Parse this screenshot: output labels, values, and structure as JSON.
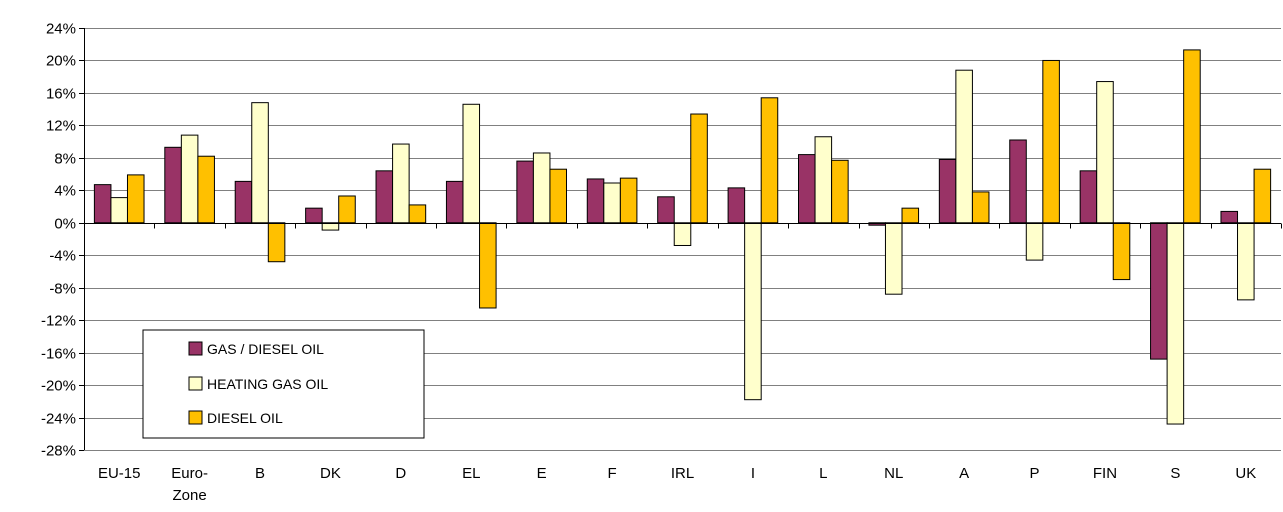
{
  "chart_data": {
    "type": "bar",
    "title": "",
    "xlabel": "",
    "ylabel": "",
    "ylim": [
      -28,
      24
    ],
    "ytick_step": 4,
    "ytick_labels": [
      "24%",
      "20%",
      "16%",
      "12%",
      "8%",
      "4%",
      "0%",
      "-4%",
      "-8%",
      "-12%",
      "-16%",
      "-20%",
      "-24%",
      "-28%"
    ],
    "categories": [
      "EU-15",
      "Euro-Zone",
      "B",
      "DK",
      "D",
      "EL",
      "E",
      "F",
      "IRL",
      "I",
      "L",
      "NL",
      "A",
      "P",
      "FIN",
      "S",
      "UK"
    ],
    "category_lines": [
      [
        "EU-15"
      ],
      [
        "Euro-",
        "Zone"
      ],
      [
        "B"
      ],
      [
        "DK"
      ],
      [
        "D"
      ],
      [
        "EL"
      ],
      [
        "E"
      ],
      [
        "F"
      ],
      [
        "IRL"
      ],
      [
        "I"
      ],
      [
        "L"
      ],
      [
        "NL"
      ],
      [
        "A"
      ],
      [
        "P"
      ],
      [
        "FIN"
      ],
      [
        "S"
      ],
      [
        "UK"
      ]
    ],
    "grid": true,
    "legend_position": "bottom-left",
    "series": [
      {
        "name": "GAS / DIESEL OIL",
        "color": "#993366",
        "values": [
          4.7,
          9.3,
          5.1,
          1.8,
          6.4,
          5.1,
          7.6,
          5.4,
          3.2,
          4.3,
          8.4,
          -0.3,
          7.8,
          10.2,
          6.4,
          -16.8,
          1.4
        ]
      },
      {
        "name": "HEATING GAS OIL",
        "color": "#FFFFCC",
        "values": [
          3.1,
          10.8,
          14.8,
          -0.9,
          9.7,
          14.6,
          8.6,
          4.9,
          -2.8,
          -21.8,
          10.6,
          -8.8,
          18.8,
          -4.6,
          17.4,
          -24.8,
          -9.5
        ]
      },
      {
        "name": "DIESEL OIL",
        "color": "#FFC000",
        "values": [
          5.9,
          8.2,
          -4.8,
          3.3,
          2.2,
          -10.5,
          6.6,
          5.5,
          13.4,
          15.4,
          7.7,
          1.8,
          3.8,
          20.0,
          -7.0,
          21.3,
          6.6
        ]
      }
    ]
  }
}
